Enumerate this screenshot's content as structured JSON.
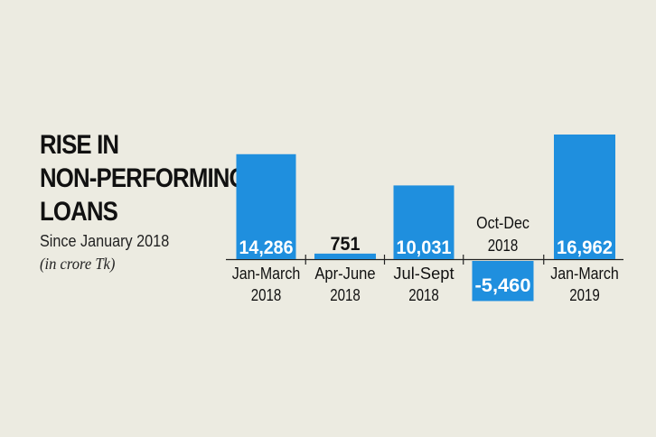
{
  "header": {
    "title_lines": [
      "RISE IN",
      "NON-PERFORMING",
      "LOANS"
    ],
    "subtitle": "Since January 2018",
    "unit": "(in crore Tk)"
  },
  "colors": {
    "bar": "#1f8fde",
    "background": "#ecebe1",
    "text": "#111111",
    "label_on_bar": "#ffffff"
  },
  "chart_data": {
    "type": "bar",
    "title": "RISE IN NON-PERFORMING LOANS",
    "subtitle": "Since January 2018",
    "ylabel": "(in crore Tk)",
    "categories": [
      [
        "Jan-March",
        "2018"
      ],
      [
        "Apr-June",
        "2018"
      ],
      [
        "Jul-Sept",
        "2018"
      ],
      [
        "Oct-Dec",
        "2018"
      ],
      [
        "Jan-March",
        "2019"
      ]
    ],
    "values": [
      14286,
      751,
      10031,
      -5460,
      16962
    ],
    "value_labels": [
      "14,286",
      "751",
      "10,031",
      "-5,460",
      "16,962"
    ],
    "ylim": [
      -5460,
      16962
    ],
    "grid": false,
    "legend": "none"
  }
}
